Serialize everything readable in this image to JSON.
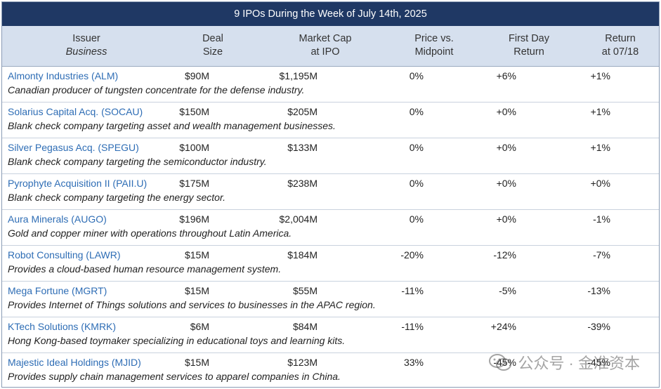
{
  "title": "9 IPOs During the Week of July 14th, 2025",
  "header": {
    "issuer": "Issuer",
    "business": "Business",
    "deal_1": "Deal",
    "deal_2": "Size",
    "mcap_1": "Market Cap",
    "mcap_2": "at IPO",
    "price_1": "Price vs.",
    "price_2": "Midpoint",
    "first_1": "First Day",
    "first_2": "Return",
    "ret_1": "Return",
    "ret_2": "at 07/18"
  },
  "rows": [
    {
      "issuer": "Almonty Industries (ALM)",
      "desc": "Canadian producer of tungsten concentrate for the defense industry.",
      "deal": "$90M",
      "mcap": "$1,195M",
      "mid": "0%",
      "fdr": "+6%",
      "ret": "+1%"
    },
    {
      "issuer": "Solarius Capital Acq. (SOCAU)",
      "desc": "Blank check company targeting asset and wealth management businesses.",
      "deal": "$150M",
      "mcap": "$205M",
      "mid": "0%",
      "fdr": "+0%",
      "ret": "+1%"
    },
    {
      "issuer": "Silver Pegasus Acq. (SPEGU)",
      "desc": "Blank check company targeting the semiconductor industry.",
      "deal": "$100M",
      "mcap": "$133M",
      "mid": "0%",
      "fdr": "+0%",
      "ret": "+1%"
    },
    {
      "issuer": "Pyrophyte Acquisition II (PAII.U)",
      "desc": "Blank check company targeting the energy sector.",
      "deal": "$175M",
      "mcap": "$238M",
      "mid": "0%",
      "fdr": "+0%",
      "ret": "+0%"
    },
    {
      "issuer": "Aura Minerals (AUGO)",
      "desc": "Gold and copper miner with operations throughout Latin America.",
      "deal": "$196M",
      "mcap": "$2,004M",
      "mid": "0%",
      "fdr": "+0%",
      "ret": "-1%"
    },
    {
      "issuer": "Robot Consulting (LAWR)",
      "desc": "Provides a cloud-based human resource management system.",
      "deal": "$15M",
      "mcap": "$184M",
      "mid": "-20%",
      "fdr": "-12%",
      "ret": "-7%"
    },
    {
      "issuer": "Mega Fortune (MGRT)",
      "desc": "Provides Internet of Things solutions and services to businesses in the APAC region.",
      "deal": "$15M",
      "mcap": "$55M",
      "mid": "-11%",
      "fdr": "-5%",
      "ret": "-13%"
    },
    {
      "issuer": "KTech Solutions (KMRK)",
      "desc": "Hong Kong-based toymaker specializing in educational toys and learning kits.",
      "deal": "$6M",
      "mcap": "$84M",
      "mid": "-11%",
      "fdr": "+24%",
      "ret": "-39%"
    },
    {
      "issuer": "Majestic Ideal Holdings (MJID)",
      "desc": "Provides supply chain management services to apparel companies in China.",
      "deal": "$15M",
      "mcap": "$123M",
      "mid": "33%",
      "fdr": "-45%",
      "ret": "-45%"
    }
  ],
  "watermark": {
    "text": "公众号 · 金准资本",
    "icon": "wechat-icon"
  }
}
